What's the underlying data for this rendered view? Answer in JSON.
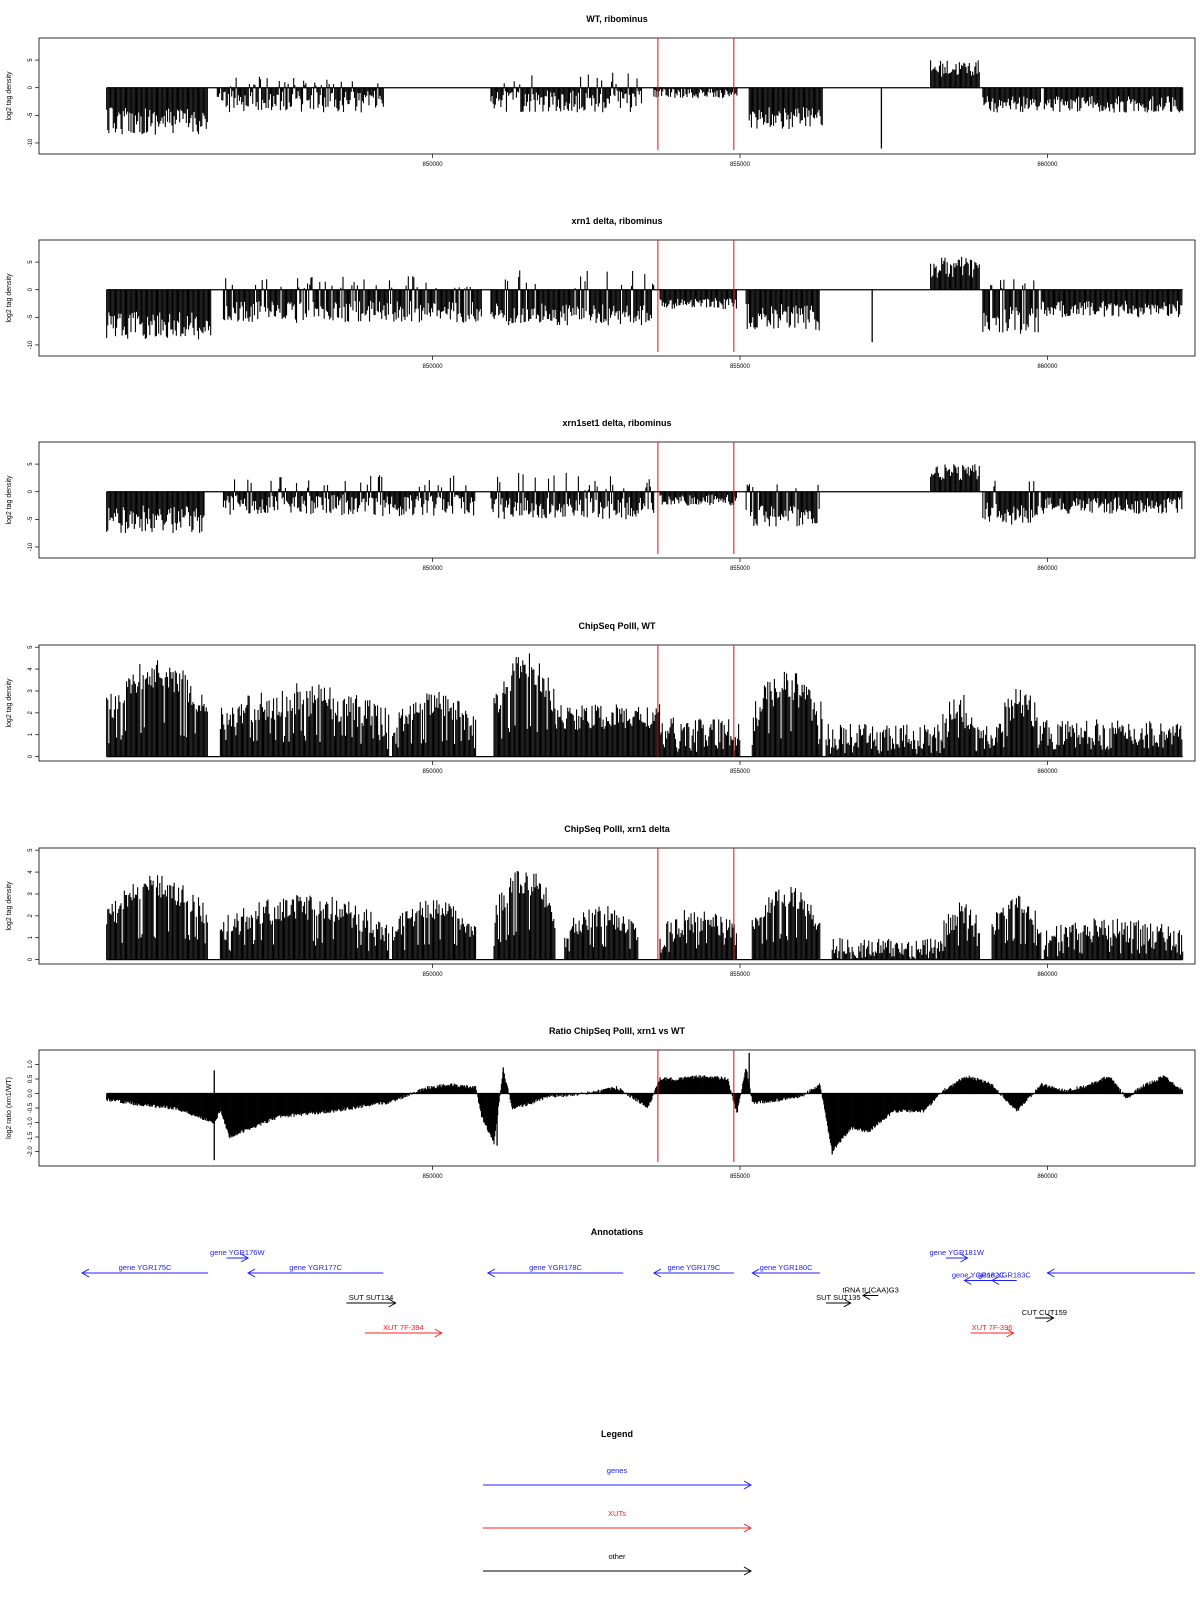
{
  "colors": {
    "genes": "#2020ff",
    "xuts": "#ff2020",
    "other": "#000000",
    "marker": "#ff0000",
    "bars": "#000000"
  },
  "chart_data": [
    {
      "type": "bar",
      "title": "WT, ribominus",
      "ylabel": "log2 tag density",
      "ylim": [
        -12,
        9
      ],
      "yticks": [
        -10,
        -5,
        0,
        5
      ],
      "ytick_labels": [
        "-10",
        "-5",
        "0",
        "5"
      ],
      "xlim": [
        843600,
        862400
      ],
      "xticks": [
        850000,
        855000,
        860000
      ],
      "xtick_labels": [
        "850000",
        "855000",
        "860000"
      ],
      "markers_x": [
        853665,
        854900
      ],
      "segments": [
        {
          "start": 844700,
          "end": 846350,
          "base": -6.0,
          "amp": 2.5,
          "sign": -1
        },
        {
          "start": 846500,
          "end": 849200,
          "base": -2.5,
          "amp": 2.0,
          "sign": -1,
          "up": 2
        },
        {
          "start": 850950,
          "end": 853400,
          "base": -2.5,
          "amp": 2.0,
          "sign": -1,
          "up": 3
        },
        {
          "start": 853600,
          "end": 854950,
          "base": -1.0,
          "amp": 1.0,
          "sign": -1
        },
        {
          "start": 855150,
          "end": 856350,
          "base": -5.5,
          "amp": 2.0,
          "sign": -1
        },
        {
          "start": 858100,
          "end": 858900,
          "base": 3.5,
          "amp": 1.5,
          "sign": 1
        },
        {
          "start": 858950,
          "end": 859900,
          "base": -3.0,
          "amp": 1.5,
          "sign": -1
        },
        {
          "start": 859950,
          "end": 862200,
          "base": -3.0,
          "amp": 1.5,
          "sign": -1
        }
      ],
      "spikes": [
        {
          "x": 857300,
          "y": -11.0
        }
      ]
    },
    {
      "type": "bar",
      "title": "xrn1 delta, ribominus",
      "ylabel": "log2 tag density",
      "ylim": [
        -12,
        9
      ],
      "yticks": [
        -10,
        -5,
        0,
        5
      ],
      "ytick_labels": [
        "-10",
        "-5",
        "0",
        "5"
      ],
      "xlim": [
        843600,
        862400
      ],
      "xticks": [
        850000,
        855000,
        860000
      ],
      "xtick_labels": [
        "850000",
        "855000",
        "860000"
      ],
      "markers_x": [
        853665,
        854900
      ],
      "segments": [
        {
          "start": 844700,
          "end": 846400,
          "base": -6.5,
          "amp": 2.5,
          "sign": -1
        },
        {
          "start": 846600,
          "end": 850800,
          "base": -4.0,
          "amp": 2.0,
          "sign": -1,
          "up": 2.5
        },
        {
          "start": 850950,
          "end": 853600,
          "base": -4.5,
          "amp": 2.0,
          "sign": -1,
          "up": 3.5
        },
        {
          "start": 853700,
          "end": 854950,
          "base": -2.5,
          "amp": 1.0,
          "sign": -1
        },
        {
          "start": 855100,
          "end": 856300,
          "base": -5.0,
          "amp": 2.5,
          "sign": -1
        },
        {
          "start": 858100,
          "end": 858900,
          "base": 4.0,
          "amp": 2.0,
          "sign": 1
        },
        {
          "start": 858950,
          "end": 859850,
          "base": -5.5,
          "amp": 2.5,
          "sign": -1,
          "up": 2
        },
        {
          "start": 859900,
          "end": 862200,
          "base": -3.5,
          "amp": 1.5,
          "sign": -1
        }
      ],
      "spikes": [
        {
          "x": 857150,
          "y": -9.5
        }
      ]
    },
    {
      "type": "bar",
      "title": "xrn1set1 delta, ribominus",
      "ylabel": "log2 tag density",
      "ylim": [
        -12,
        9
      ],
      "yticks": [
        -10,
        -5,
        0,
        5
      ],
      "ytick_labels": [
        "-10",
        "-5",
        "0",
        "5"
      ],
      "xlim": [
        843600,
        862400
      ],
      "xticks": [
        850000,
        855000,
        860000
      ],
      "xtick_labels": [
        "850000",
        "855000",
        "860000"
      ],
      "markers_x": [
        853665,
        854900
      ],
      "segments": [
        {
          "start": 844700,
          "end": 846300,
          "base": -5.0,
          "amp": 2.5,
          "sign": -1
        },
        {
          "start": 846600,
          "end": 850700,
          "base": -2.5,
          "amp": 2.0,
          "sign": -1,
          "up": 3
        },
        {
          "start": 850950,
          "end": 853600,
          "base": -3.0,
          "amp": 2.0,
          "sign": -1,
          "up": 3.5
        },
        {
          "start": 853700,
          "end": 854950,
          "base": -1.5,
          "amp": 1.0,
          "sign": -1
        },
        {
          "start": 855100,
          "end": 856300,
          "base": -4.5,
          "amp": 2.0,
          "sign": -1,
          "up": 1.5
        },
        {
          "start": 858100,
          "end": 858900,
          "base": 3.5,
          "amp": 1.5,
          "sign": 1
        },
        {
          "start": 858950,
          "end": 859850,
          "base": -4.0,
          "amp": 2.0,
          "sign": -1,
          "up": 2
        },
        {
          "start": 859900,
          "end": 862200,
          "base": -2.5,
          "amp": 1.5,
          "sign": -1
        }
      ],
      "spikes": []
    },
    {
      "type": "bar",
      "title": "ChipSeq PolII, WT",
      "ylabel": "log2 tag density",
      "ylim": [
        -0.2,
        5.1
      ],
      "yticks": [
        0,
        1,
        2,
        3,
        4,
        5
      ],
      "ytick_labels": [
        "0",
        "1",
        "2",
        "3",
        "4",
        "5"
      ],
      "xlim": [
        843600,
        862400
      ],
      "xticks": [
        850000,
        855000,
        860000
      ],
      "xtick_labels": [
        "850000",
        "855000",
        "860000"
      ],
      "markers_x": [
        853665,
        854900
      ],
      "segments": [
        {
          "start": 844700,
          "end": 846350,
          "base": 3.8,
          "amp": 0.7,
          "hump": 1
        },
        {
          "start": 846550,
          "end": 849300,
          "base": 2.6,
          "amp": 0.8,
          "hump": 1
        },
        {
          "start": 849350,
          "end": 850700,
          "base": 2.4,
          "amp": 0.6,
          "hump": 1
        },
        {
          "start": 851000,
          "end": 852000,
          "base": 4.1,
          "amp": 0.7,
          "hump": 1
        },
        {
          "start": 852000,
          "end": 853700,
          "base": 1.8,
          "amp": 0.6
        },
        {
          "start": 853700,
          "end": 855000,
          "base": 1.0,
          "amp": 0.8
        },
        {
          "start": 855200,
          "end": 856350,
          "base": 3.2,
          "amp": 0.8,
          "hump": 1
        },
        {
          "start": 856400,
          "end": 858300,
          "base": 0.8,
          "amp": 0.7
        },
        {
          "start": 858300,
          "end": 858850,
          "base": 2.2,
          "amp": 0.8,
          "hump": 1
        },
        {
          "start": 858850,
          "end": 859200,
          "base": 0.8,
          "amp": 0.6
        },
        {
          "start": 859200,
          "end": 859900,
          "base": 2.5,
          "amp": 0.7,
          "hump": 1
        },
        {
          "start": 859900,
          "end": 862200,
          "base": 1.0,
          "amp": 0.7
        }
      ],
      "spikes": []
    },
    {
      "type": "bar",
      "title": "ChipSeq PolII, xrn1 delta",
      "ylabel": "log2 tag density",
      "ylim": [
        -0.2,
        5.1
      ],
      "yticks": [
        0,
        1,
        2,
        3,
        4,
        5
      ],
      "ytick_labels": [
        "0",
        "1",
        "2",
        "3",
        "4",
        "5"
      ],
      "xlim": [
        843600,
        862400
      ],
      "xticks": [
        850000,
        855000,
        860000
      ],
      "xtick_labels": [
        "850000",
        "855000",
        "860000"
      ],
      "markers_x": [
        853665,
        854900
      ],
      "segments": [
        {
          "start": 844700,
          "end": 846350,
          "base": 3.3,
          "amp": 0.6,
          "hump": 1
        },
        {
          "start": 846550,
          "end": 849300,
          "base": 2.4,
          "amp": 0.6,
          "hump": 1
        },
        {
          "start": 849350,
          "end": 850700,
          "base": 2.3,
          "amp": 0.5,
          "hump": 1
        },
        {
          "start": 851000,
          "end": 852000,
          "base": 3.6,
          "amp": 0.6,
          "hump": 1
        },
        {
          "start": 852150,
          "end": 853350,
          "base": 2.0,
          "amp": 0.5,
          "hump": 1
        },
        {
          "start": 853700,
          "end": 854950,
          "base": 1.8,
          "amp": 0.6,
          "hump": 1
        },
        {
          "start": 855200,
          "end": 856300,
          "base": 2.9,
          "amp": 0.5,
          "hump": 1
        },
        {
          "start": 856500,
          "end": 858300,
          "base": 0.5,
          "amp": 0.5
        },
        {
          "start": 858300,
          "end": 858900,
          "base": 2.1,
          "amp": 0.6,
          "hump": 1
        },
        {
          "start": 859100,
          "end": 859900,
          "base": 2.5,
          "amp": 0.5,
          "hump": 1
        },
        {
          "start": 859950,
          "end": 862200,
          "base": 1.4,
          "amp": 0.6,
          "hump": 1
        }
      ],
      "spikes": []
    },
    {
      "type": "area",
      "title": "Ratio ChipSeq PolII, xrn1 vs WT",
      "ylabel": "log2 ratio (xrn1/WT)",
      "ylim": [
        -2.5,
        1.5
      ],
      "yticks": [
        -2,
        -1.5,
        -1,
        -0.5,
        0,
        0.5,
        1
      ],
      "ytick_labels": [
        "-2.0",
        "-1.5",
        "-1.0",
        "-0.5",
        "0.0",
        "0.5",
        "1.0"
      ],
      "xlim": [
        843600,
        862400
      ],
      "xticks": [
        850000,
        855000,
        860000
      ],
      "xtick_labels": [
        "850000",
        "855000",
        "860000"
      ],
      "markers_x": [
        853665,
        854900
      ],
      "x": [
        844700,
        845300,
        845800,
        846200,
        846450,
        846550,
        846700,
        847500,
        848400,
        849300,
        849900,
        850300,
        850700,
        850800,
        851000,
        851150,
        851300,
        851500,
        851900,
        852500,
        853000,
        853300,
        853500,
        853700,
        854000,
        854400,
        854800,
        854950,
        855100,
        855200,
        855400,
        856000,
        856300,
        856500,
        856800,
        857100,
        857500,
        858000,
        858300,
        858700,
        859100,
        859500,
        859900,
        860300,
        860700,
        861000,
        861300,
        861500,
        861900,
        862200
      ],
      "y": [
        -0.2,
        -0.4,
        -0.5,
        -0.8,
        -1.0,
        -0.6,
        -1.5,
        -0.8,
        -0.6,
        -0.3,
        0.2,
        0.3,
        0.2,
        -0.8,
        -1.7,
        0.8,
        -0.5,
        -0.4,
        -0.1,
        0.0,
        0.2,
        -0.2,
        -0.5,
        0.5,
        0.5,
        0.6,
        0.5,
        -0.7,
        0.9,
        -0.3,
        -0.3,
        -0.1,
        0.3,
        -2.0,
        -1.2,
        -1.3,
        -0.6,
        -0.6,
        0.1,
        0.6,
        0.3,
        -0.6,
        0.3,
        0.1,
        0.3,
        0.6,
        -0.2,
        0.2,
        0.6,
        0.1
      ],
      "spikes": [
        {
          "x": 846450,
          "y": -2.3
        },
        {
          "x": 846450,
          "y": 0.8
        },
        {
          "x": 851150,
          "y": 0.9
        },
        {
          "x": 851050,
          "y": -1.8
        },
        {
          "x": 855150,
          "y": 1.4
        },
        {
          "x": 856500,
          "y": -2.1
        }
      ]
    }
  ],
  "annotations": {
    "title": "Annotations",
    "features": [
      {
        "label": "gene YGR175C",
        "start": 846350,
        "end": 844300,
        "row": 1,
        "color": "genes"
      },
      {
        "label": "gene YGR176W",
        "start": 846650,
        "end": 847000,
        "row": 0,
        "color": "genes"
      },
      {
        "label": "gene YGR177C",
        "start": 849200,
        "end": 847000,
        "row": 1,
        "color": "genes"
      },
      {
        "label": "gene YGR178C",
        "start": 853100,
        "end": 850900,
        "row": 1,
        "color": "genes"
      },
      {
        "label": "gene YGR179C",
        "start": 854900,
        "end": 853600,
        "row": 1,
        "color": "genes"
      },
      {
        "label": "gene YGR180C",
        "start": 856300,
        "end": 855200,
        "row": 1,
        "color": "genes"
      },
      {
        "label": "gene YGR181W",
        "start": 858350,
        "end": 858700,
        "row": 0,
        "color": "genes"
      },
      {
        "label": "gene YGR182C",
        "start": 859100,
        "end": 858650,
        "row": 1.5,
        "color": "genes"
      },
      {
        "label": "gene YGR183C",
        "start": 859500,
        "end": 859100,
        "row": 1.5,
        "color": "genes"
      },
      {
        "label": "",
        "start": 862400,
        "end": 860000,
        "row": 1,
        "color": "genes"
      },
      {
        "label": "SUT SUT134",
        "start": 848600,
        "end": 849400,
        "row": 3,
        "color": "other"
      },
      {
        "label": "tRNA tL(CAA)G3",
        "start": 857250,
        "end": 857000,
        "row": 2.5,
        "color": "other"
      },
      {
        "label": "SUT SUT135",
        "start": 856400,
        "end": 856800,
        "row": 3,
        "color": "other"
      },
      {
        "label": "CUT CUT159",
        "start": 859800,
        "end": 860100,
        "row": 4,
        "color": "other"
      },
      {
        "label": "XUT 7F-394",
        "start": 848900,
        "end": 850150,
        "row": 5,
        "color": "xuts"
      },
      {
        "label": "XUT 7F-396",
        "start": 858750,
        "end": 859450,
        "row": 5,
        "color": "xuts"
      }
    ]
  },
  "legend": {
    "title": "Legend",
    "items": [
      {
        "label": "genes",
        "color": "genes"
      },
      {
        "label": "XUTs",
        "color": "xuts"
      },
      {
        "label": "other",
        "color": "other"
      }
    ]
  }
}
